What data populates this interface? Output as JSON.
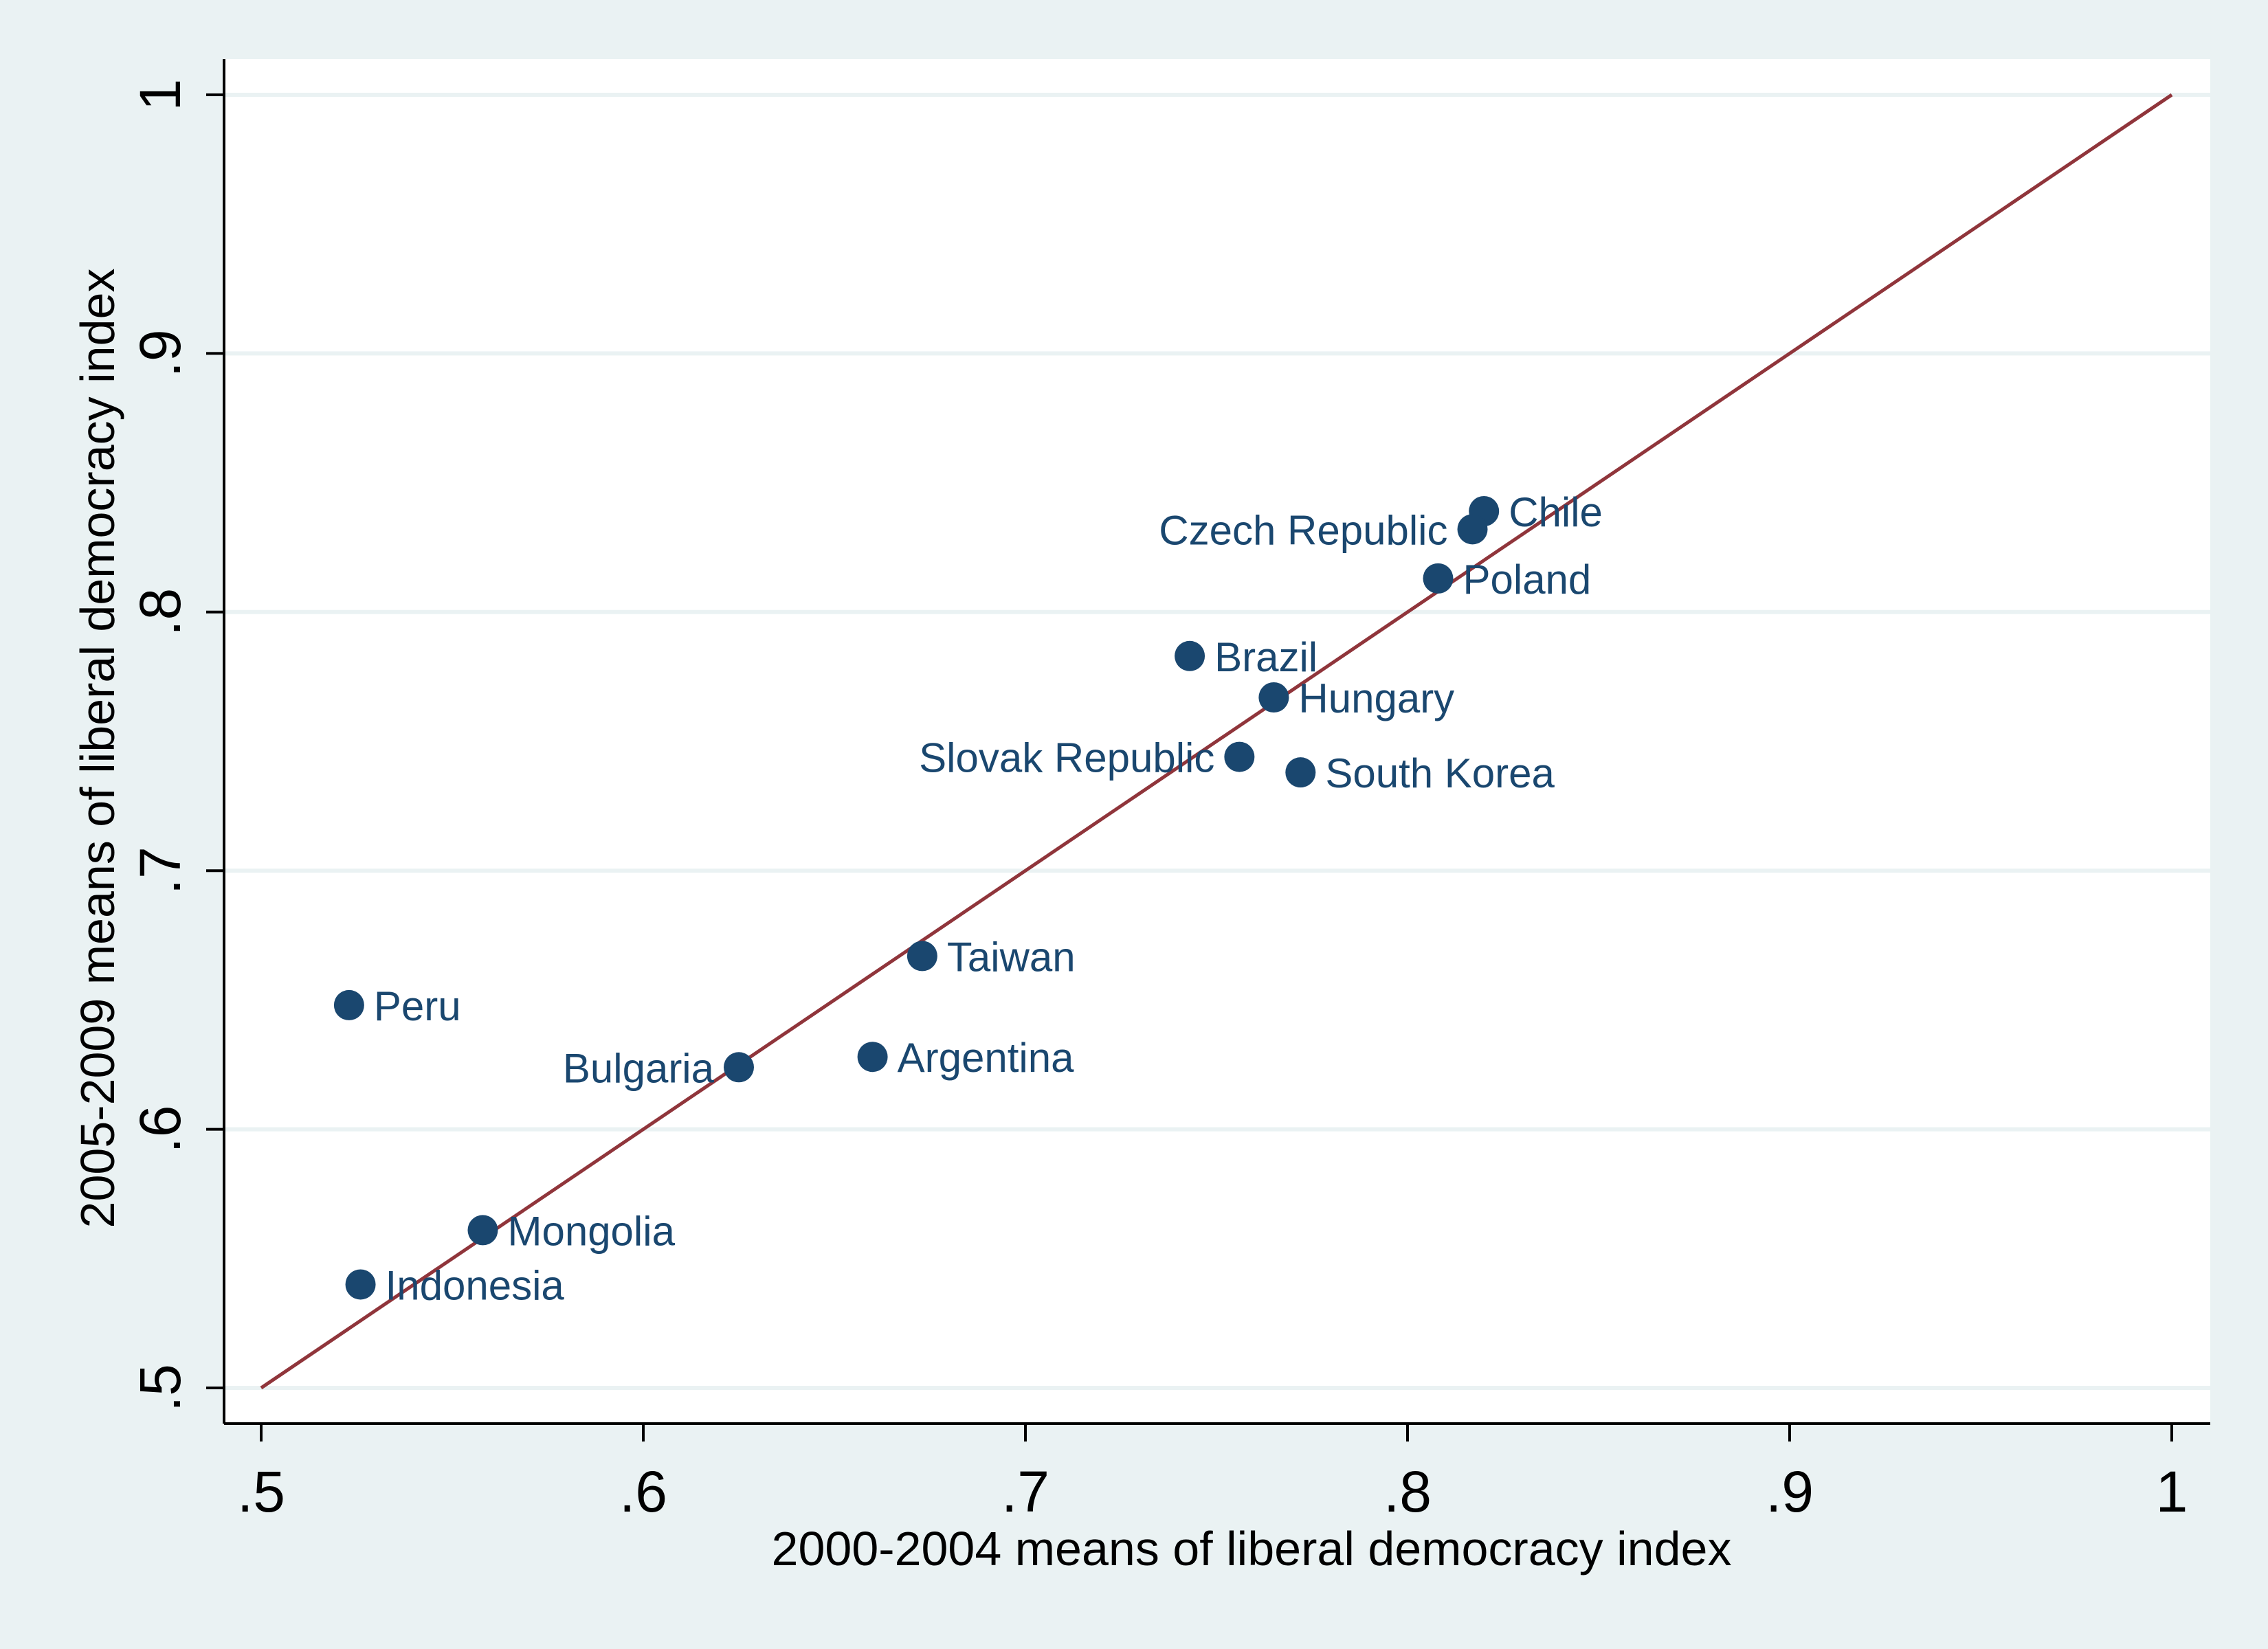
{
  "chart_data": {
    "type": "scatter",
    "xlabel": "2000-2004 means of liberal democracy index",
    "ylabel": "2005-2009 means of liberal democracy index",
    "xlim": [
      0.5,
      1
    ],
    "ylim": [
      0.5,
      1
    ],
    "x_ticks": [
      {
        "value": 0.5,
        "label": ".5"
      },
      {
        "value": 0.6,
        "label": ".6"
      },
      {
        "value": 0.7,
        "label": ".7"
      },
      {
        "value": 0.8,
        "label": ".8"
      },
      {
        "value": 0.9,
        "label": ".9"
      },
      {
        "value": 1.0,
        "label": "1"
      }
    ],
    "y_ticks": [
      {
        "value": 0.5,
        "label": ".5"
      },
      {
        "value": 0.6,
        "label": ".6"
      },
      {
        "value": 0.7,
        "label": ".7"
      },
      {
        "value": 0.8,
        "label": ".8"
      },
      {
        "value": 0.9,
        "label": ".9"
      },
      {
        "value": 1.0,
        "label": "1"
      }
    ],
    "grid": "horizontal",
    "points": [
      {
        "label": "Chile",
        "x": 0.82,
        "y": 0.839,
        "label_side": "right"
      },
      {
        "label": "Czech Republic",
        "x": 0.817,
        "y": 0.832,
        "label_side": "left"
      },
      {
        "label": "Poland",
        "x": 0.808,
        "y": 0.813,
        "label_side": "right"
      },
      {
        "label": "Brazil",
        "x": 0.743,
        "y": 0.783,
        "label_side": "right"
      },
      {
        "label": "Hungary",
        "x": 0.765,
        "y": 0.767,
        "label_side": "right"
      },
      {
        "label": "Slovak Republic",
        "x": 0.756,
        "y": 0.744,
        "label_side": "left"
      },
      {
        "label": "South Korea",
        "x": 0.772,
        "y": 0.738,
        "label_side": "right"
      },
      {
        "label": "Taiwan",
        "x": 0.673,
        "y": 0.667,
        "label_side": "right"
      },
      {
        "label": "Peru",
        "x": 0.523,
        "y": 0.648,
        "label_side": "right"
      },
      {
        "label": "Argentina",
        "x": 0.66,
        "y": 0.628,
        "label_side": "right"
      },
      {
        "label": "Bulgaria",
        "x": 0.625,
        "y": 0.624,
        "label_side": "left"
      },
      {
        "label": "Mongolia",
        "x": 0.558,
        "y": 0.561,
        "label_side": "right"
      },
      {
        "label": "Indonesia",
        "x": 0.526,
        "y": 0.54,
        "label_side": "right"
      }
    ],
    "reference_line": {
      "from": [
        0.5,
        0.5
      ],
      "to": [
        1.0,
        1.0
      ],
      "color": "#90353b"
    },
    "colors": {
      "background": "#eaf2f3",
      "plot_background": "#ffffff",
      "grid": "#eaf2f3",
      "marker": "#1a476f",
      "label": "#1a476f",
      "axis": "#000000"
    }
  }
}
